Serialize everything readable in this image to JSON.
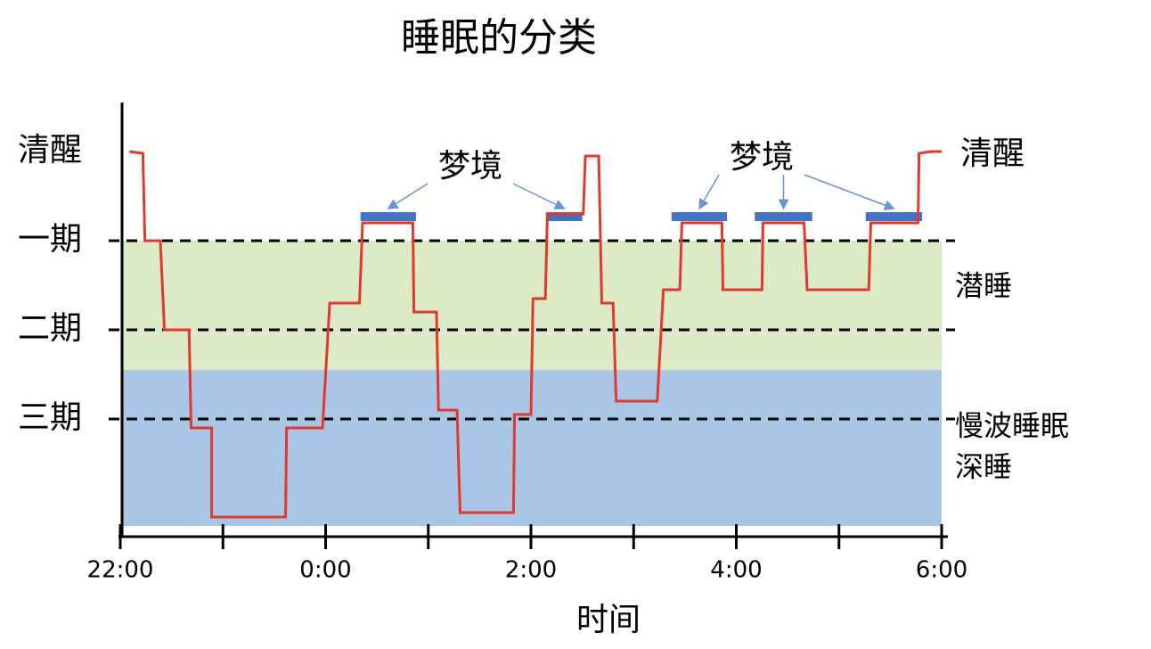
{
  "chart_data": {
    "type": "line",
    "title": "睡眠的分类",
    "xlabel": "时间",
    "xlim": [
      0,
      8
    ],
    "xticks": [
      {
        "value": 0,
        "label": "22:00"
      },
      {
        "value": 2,
        "label": "0:00"
      },
      {
        "value": 4,
        "label": "2:00"
      },
      {
        "value": 6,
        "label": "4:00"
      },
      {
        "value": 8,
        "label": "6:00"
      }
    ],
    "xminor_ticks": [
      1,
      3,
      5,
      7
    ],
    "ylim": [
      -0.55,
      4.32
    ],
    "yticks": [
      {
        "value": 0,
        "label": "清醒"
      },
      {
        "value": 1,
        "label": "一期"
      },
      {
        "value": 2,
        "label": "二期"
      },
      {
        "value": 3,
        "label": "三期"
      }
    ],
    "right_label": "清醒",
    "bands": [
      {
        "from": 1,
        "to": 2.45,
        "color": "#dcebc6",
        "labels": [
          "潜睡"
        ]
      },
      {
        "from": 2.45,
        "to": 4.2,
        "color": "#a9c6e6",
        "labels": [
          "慢波睡眠",
          "深睡"
        ]
      }
    ],
    "series": [
      {
        "color": "#e03a2e",
        "x": [
          0.09,
          0.22,
          0.24,
          0.39,
          0.43,
          0.67,
          0.69,
          0.89,
          0.89,
          1.61,
          1.62,
          1.97,
          2.04,
          2.33,
          2.36,
          2.85,
          2.86,
          3.08,
          3.1,
          3.28,
          3.31,
          3.83,
          3.84,
          4.0,
          4.02,
          4.14,
          4.16,
          4.51,
          4.53,
          4.66,
          4.69,
          4.8,
          4.83,
          5.23,
          5.29,
          5.45,
          5.47,
          5.86,
          5.87,
          6.25,
          6.26,
          6.66,
          6.69,
          7.29,
          7.31,
          7.77,
          7.78,
          7.9,
          8.0
        ],
        "values": [
          0,
          0.02,
          1,
          1,
          2,
          2,
          3.1,
          3.1,
          4.1,
          4.1,
          3.1,
          3.1,
          1.7,
          1.7,
          0.8,
          0.8,
          1.8,
          1.8,
          2.9,
          2.9,
          4.05,
          4.05,
          2.95,
          2.95,
          1.65,
          1.65,
          0.7,
          0.7,
          0.05,
          0.05,
          1.7,
          1.7,
          2.8,
          2.8,
          1.55,
          1.55,
          0.8,
          0.8,
          1.55,
          1.55,
          0.8,
          0.8,
          1.55,
          1.55,
          0.8,
          0.8,
          0.02,
          0,
          0
        ]
      }
    ],
    "dream_color": "#4472c4",
    "dream_level": 0.73,
    "dream_periods": [
      [
        2.34,
        2.88
      ],
      [
        4.15,
        4.5
      ],
      [
        5.37,
        5.91
      ],
      [
        6.18,
        6.74
      ],
      [
        7.26,
        7.81
      ]
    ],
    "annotations": [
      "梦境",
      "梦境"
    ]
  }
}
